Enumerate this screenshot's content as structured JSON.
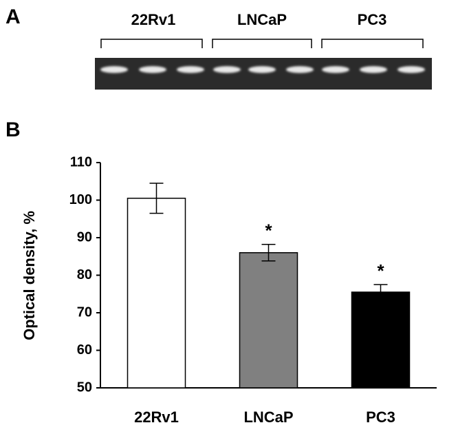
{
  "panels": {
    "a": "A",
    "b": "B"
  },
  "gel": {
    "groups": [
      "22Rv1",
      "LNCaP",
      "PC3"
    ]
  },
  "chart_data": {
    "type": "bar",
    "y_label": "Optical density, %",
    "categories": [
      "22Rv1",
      "LNCaP",
      "PC3"
    ],
    "values": [
      100.5,
      86,
      75.5
    ],
    "errors": [
      4,
      2.2,
      2
    ],
    "colors": [
      "#ffffff",
      "#808080",
      "#000000"
    ],
    "significance": [
      null,
      "*",
      "*"
    ],
    "ylim": [
      50,
      110
    ],
    "yticks": [
      50,
      60,
      70,
      80,
      90,
      100,
      110
    ],
    "grid": false
  }
}
